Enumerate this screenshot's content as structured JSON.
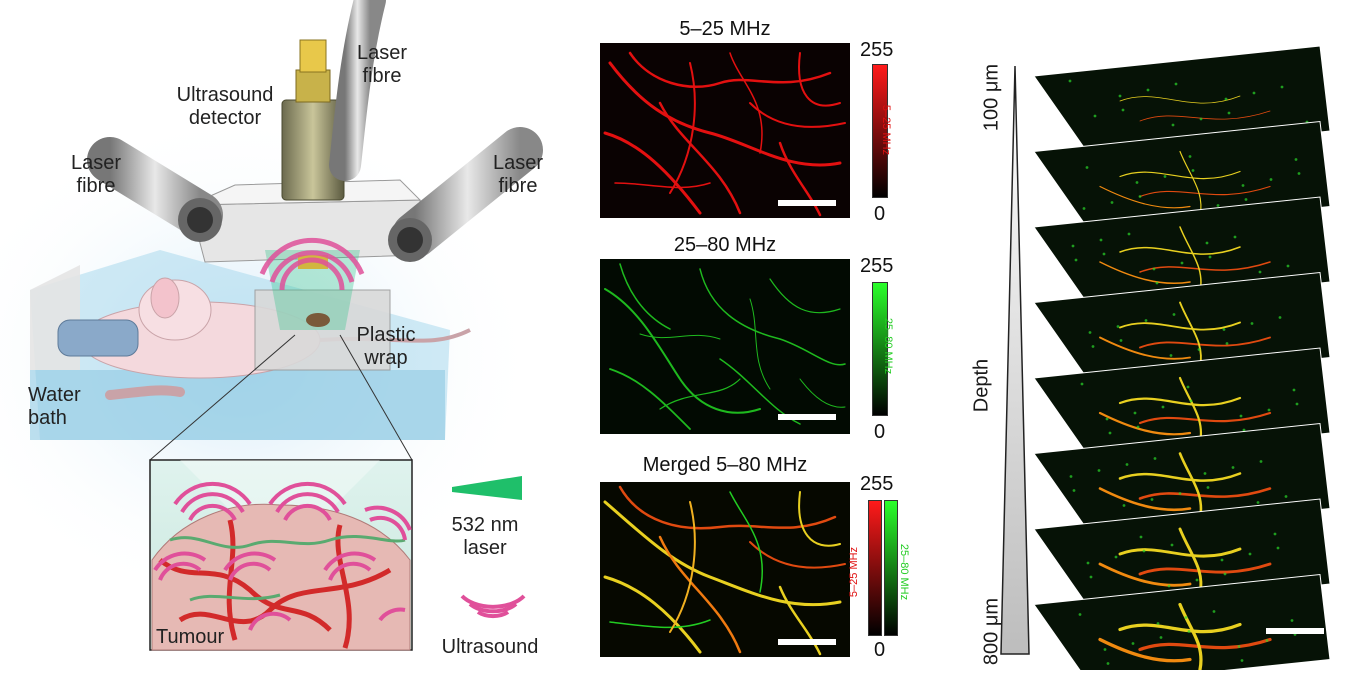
{
  "setup": {
    "laser_fibre_top": "Laser\nfibre",
    "laser_fibre_left": "Laser\nfibre",
    "laser_fibre_right": "Laser\nfibre",
    "ultrasound_detector": "Ultrasound\ndetector",
    "plastic_wrap": "Plastic\nwrap",
    "water_bath": "Water\nbath",
    "tumour": "Tumour"
  },
  "legend": {
    "laser": "532 nm\nlaser",
    "ultrasound": "Ultrasound"
  },
  "panels": [
    {
      "title": "5–25 MHz",
      "cb_max": "255",
      "cb_min": "0",
      "cb_label": "5–25 MHz",
      "color": "#e01010"
    },
    {
      "title": "25–80 MHz",
      "cb_max": "255",
      "cb_min": "0",
      "cb_label": "25–80 MHz",
      "color": "#22cc22"
    },
    {
      "title": "Merged 5–80 MHz",
      "cb_max": "255",
      "cb_min": "0",
      "cb_label_red": "5–25 MHz",
      "cb_label_green": "25–80 MHz"
    }
  ],
  "depth": {
    "top": "100 μm",
    "middle": "Depth",
    "bottom": "800 μm",
    "slice_count": 8
  },
  "colors": {
    "red": "#e01010",
    "green": "#22cc22",
    "yellow": "#e8d020",
    "pink": "#e0509a",
    "laser_green": "#1fbf6a"
  }
}
